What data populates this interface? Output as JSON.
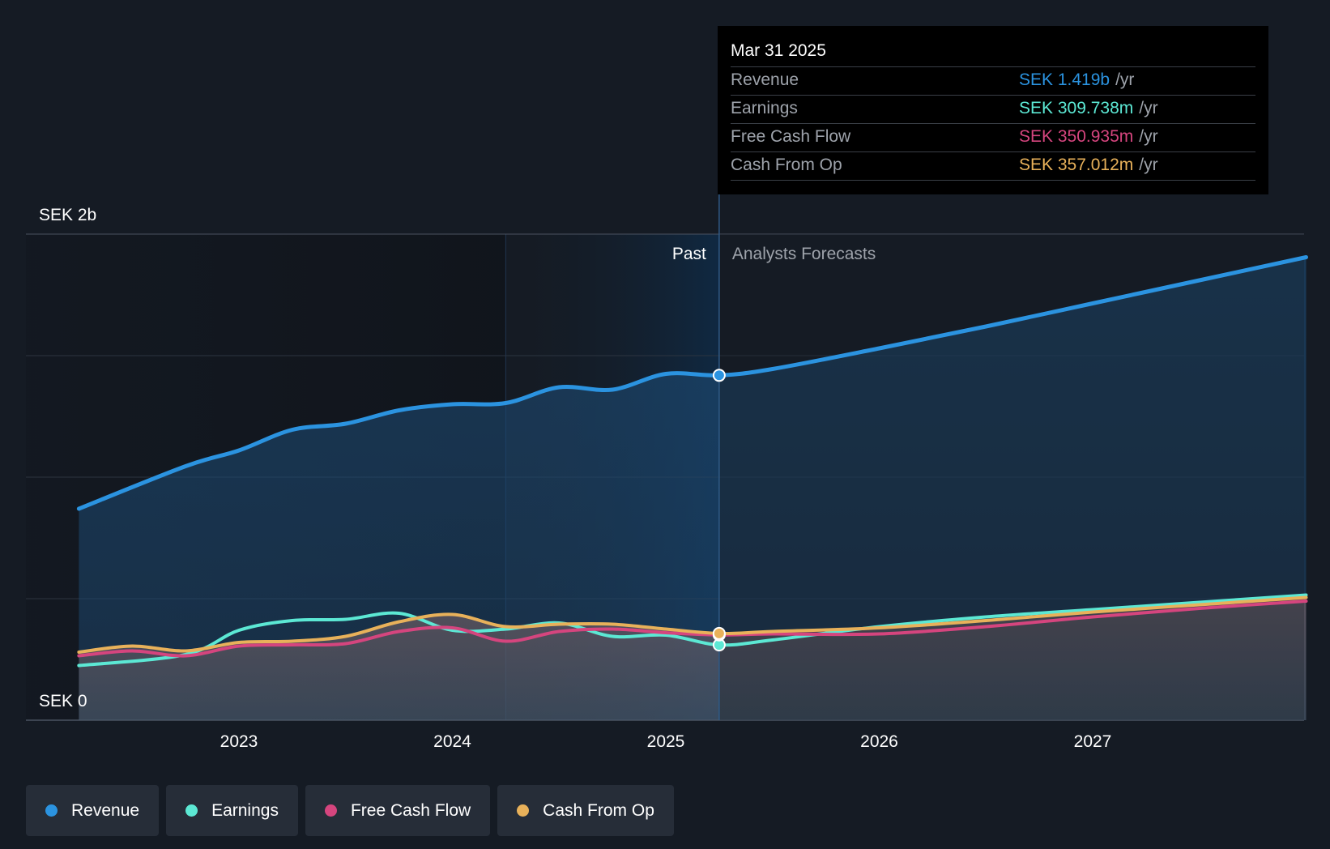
{
  "chart_data": {
    "type": "area",
    "y_unit_label_top": "SEK 2b",
    "y_unit_label_bottom": "SEK 0",
    "ylim": [
      0,
      2000
    ],
    "x_ticks": [
      "2023",
      "2024",
      "2025",
      "2026",
      "2027"
    ],
    "past_label": "Past",
    "forecast_label": "Analysts Forecasts",
    "divider_x": 2025.25,
    "series": [
      {
        "name": "Revenue",
        "color": "#2b93e0",
        "points": [
          [
            2022.25,
            870
          ],
          [
            2022.75,
            1045
          ],
          [
            2023.0,
            1110
          ],
          [
            2023.25,
            1195
          ],
          [
            2023.5,
            1220
          ],
          [
            2023.75,
            1275
          ],
          [
            2024.0,
            1300
          ],
          [
            2024.25,
            1305
          ],
          [
            2024.5,
            1370
          ],
          [
            2024.75,
            1360
          ],
          [
            2025.0,
            1425
          ],
          [
            2025.25,
            1419
          ],
          [
            2025.5,
            1445
          ],
          [
            2026.0,
            1530
          ],
          [
            2026.5,
            1620
          ],
          [
            2027.0,
            1715
          ],
          [
            2027.5,
            1810
          ],
          [
            2028.0,
            1905
          ]
        ]
      },
      {
        "name": "Earnings",
        "color": "#5ce8d4",
        "points": [
          [
            2022.25,
            225
          ],
          [
            2022.75,
            270
          ],
          [
            2023.0,
            370
          ],
          [
            2023.25,
            410
          ],
          [
            2023.5,
            415
          ],
          [
            2023.75,
            440
          ],
          [
            2024.0,
            370
          ],
          [
            2024.25,
            375
          ],
          [
            2024.5,
            400
          ],
          [
            2024.75,
            345
          ],
          [
            2025.0,
            350
          ],
          [
            2025.25,
            309.738
          ],
          [
            2025.5,
            330
          ],
          [
            2026.0,
            385
          ],
          [
            2026.5,
            425
          ],
          [
            2027.0,
            455
          ],
          [
            2027.5,
            485
          ],
          [
            2028.0,
            515
          ]
        ]
      },
      {
        "name": "Free Cash Flow",
        "color": "#d5457e",
        "points": [
          [
            2022.25,
            265
          ],
          [
            2022.5,
            285
          ],
          [
            2022.75,
            265
          ],
          [
            2023.0,
            305
          ],
          [
            2023.25,
            310
          ],
          [
            2023.5,
            315
          ],
          [
            2023.75,
            365
          ],
          [
            2024.0,
            380
          ],
          [
            2024.25,
            325
          ],
          [
            2024.5,
            365
          ],
          [
            2024.75,
            375
          ],
          [
            2025.0,
            360
          ],
          [
            2025.25,
            350.935
          ],
          [
            2025.5,
            355
          ],
          [
            2026.0,
            355
          ],
          [
            2026.5,
            385
          ],
          [
            2027.0,
            425
          ],
          [
            2027.5,
            460
          ],
          [
            2028.0,
            490
          ]
        ]
      },
      {
        "name": "Cash From Op",
        "color": "#e8b15a",
        "points": [
          [
            2022.25,
            280
          ],
          [
            2022.5,
            305
          ],
          [
            2022.75,
            285
          ],
          [
            2023.0,
            320
          ],
          [
            2023.25,
            325
          ],
          [
            2023.5,
            345
          ],
          [
            2023.75,
            405
          ],
          [
            2024.0,
            435
          ],
          [
            2024.25,
            385
          ],
          [
            2024.5,
            395
          ],
          [
            2024.75,
            395
          ],
          [
            2025.0,
            375
          ],
          [
            2025.25,
            357.012
          ],
          [
            2025.5,
            365
          ],
          [
            2026.0,
            380
          ],
          [
            2026.5,
            410
          ],
          [
            2027.0,
            445
          ],
          [
            2027.5,
            475
          ],
          [
            2028.0,
            505
          ]
        ]
      }
    ]
  },
  "tooltip": {
    "date": "Mar 31 2025",
    "rows": [
      {
        "label": "Revenue",
        "value": "SEK 1.419b",
        "unit": "/yr",
        "color": "#2b93e0"
      },
      {
        "label": "Earnings",
        "value": "SEK 309.738m",
        "unit": "/yr",
        "color": "#5ce8d4"
      },
      {
        "label": "Free Cash Flow",
        "value": "SEK 350.935m",
        "unit": "/yr",
        "color": "#d5457e"
      },
      {
        "label": "Cash From Op",
        "value": "SEK 357.012m",
        "unit": "/yr",
        "color": "#e8b15a"
      }
    ]
  },
  "legend": [
    {
      "label": "Revenue",
      "color": "#2b93e0"
    },
    {
      "label": "Earnings",
      "color": "#5ce8d4"
    },
    {
      "label": "Free Cash Flow",
      "color": "#d5457e"
    },
    {
      "label": "Cash From Op",
      "color": "#e8b15a"
    }
  ]
}
